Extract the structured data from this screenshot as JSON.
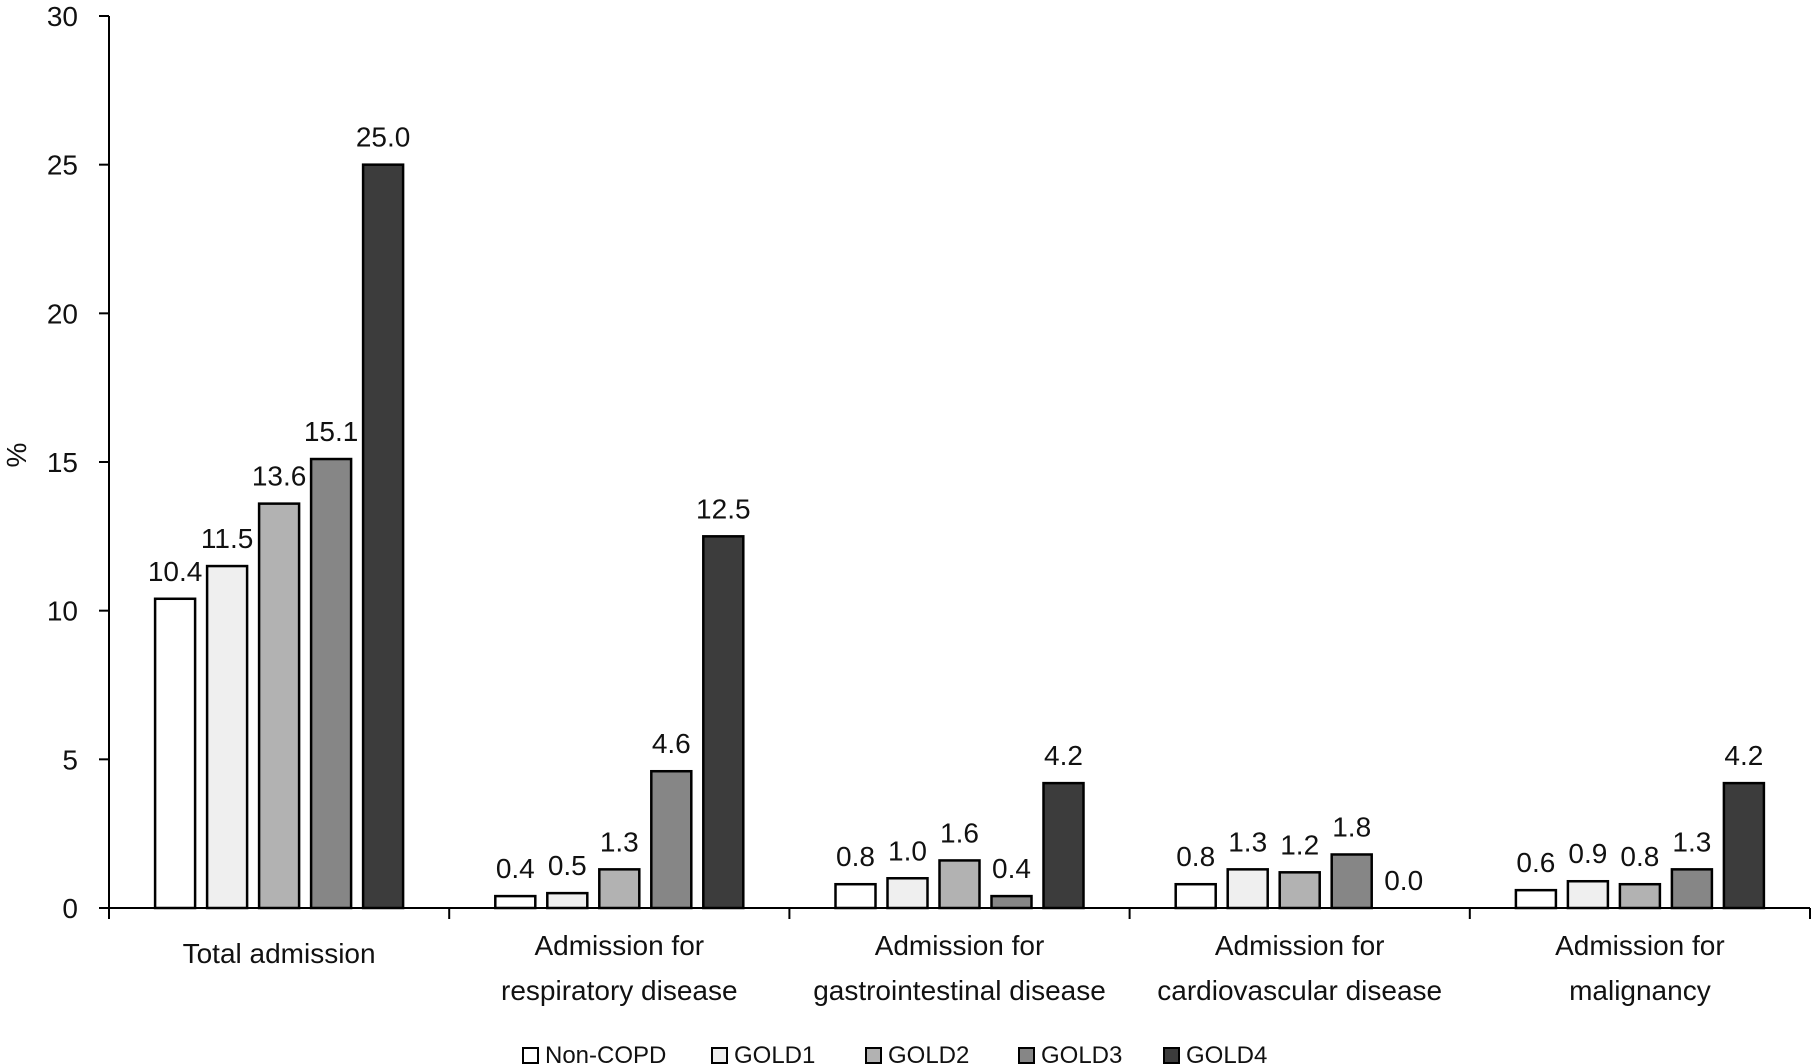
{
  "chart_data": {
    "type": "bar",
    "ylabel": "%",
    "xlabel": "",
    "ylim": [
      0,
      30
    ],
    "yticks": [
      0,
      5,
      10,
      15,
      20,
      25,
      30
    ],
    "grid": false,
    "legend_position": "bottom",
    "categories": [
      [
        "Total admission"
      ],
      [
        "Admission for",
        "respiratory disease"
      ],
      [
        "Admission for",
        "gastrointestinal disease"
      ],
      [
        "Admission for",
        "cardiovascular disease"
      ],
      [
        "Admission for",
        "malignancy"
      ]
    ],
    "series": [
      {
        "name": "Non-COPD",
        "color": "#ffffff",
        "values": [
          10.4,
          0.4,
          0.8,
          0.8,
          0.6
        ],
        "labels": [
          "10.4",
          "0.4",
          "0.8",
          "0.8",
          "0.6"
        ]
      },
      {
        "name": "GOLD1",
        "color": "#efefef",
        "values": [
          11.5,
          0.5,
          1.0,
          1.3,
          0.9
        ],
        "labels": [
          "11.5",
          "0.5",
          "1.0",
          "1.3",
          "0.9"
        ]
      },
      {
        "name": "GOLD2",
        "color": "#b2b2b2",
        "values": [
          13.6,
          1.3,
          1.6,
          1.2,
          0.8
        ],
        "labels": [
          "13.6",
          "1.3",
          "1.6",
          "1.2",
          "0.8"
        ]
      },
      {
        "name": "GOLD3",
        "color": "#868686",
        "values": [
          15.1,
          4.6,
          0.4,
          1.8,
          1.3
        ],
        "labels": [
          "15.1",
          "4.6",
          "0.4",
          "1.8",
          "1.3"
        ]
      },
      {
        "name": "GOLD4",
        "color": "#3c3c3c",
        "values": [
          25.0,
          12.5,
          4.2,
          0.0,
          4.2
        ],
        "labels": [
          "25.0",
          "12.5",
          "4.2",
          "0.0",
          "4.2"
        ]
      }
    ]
  }
}
